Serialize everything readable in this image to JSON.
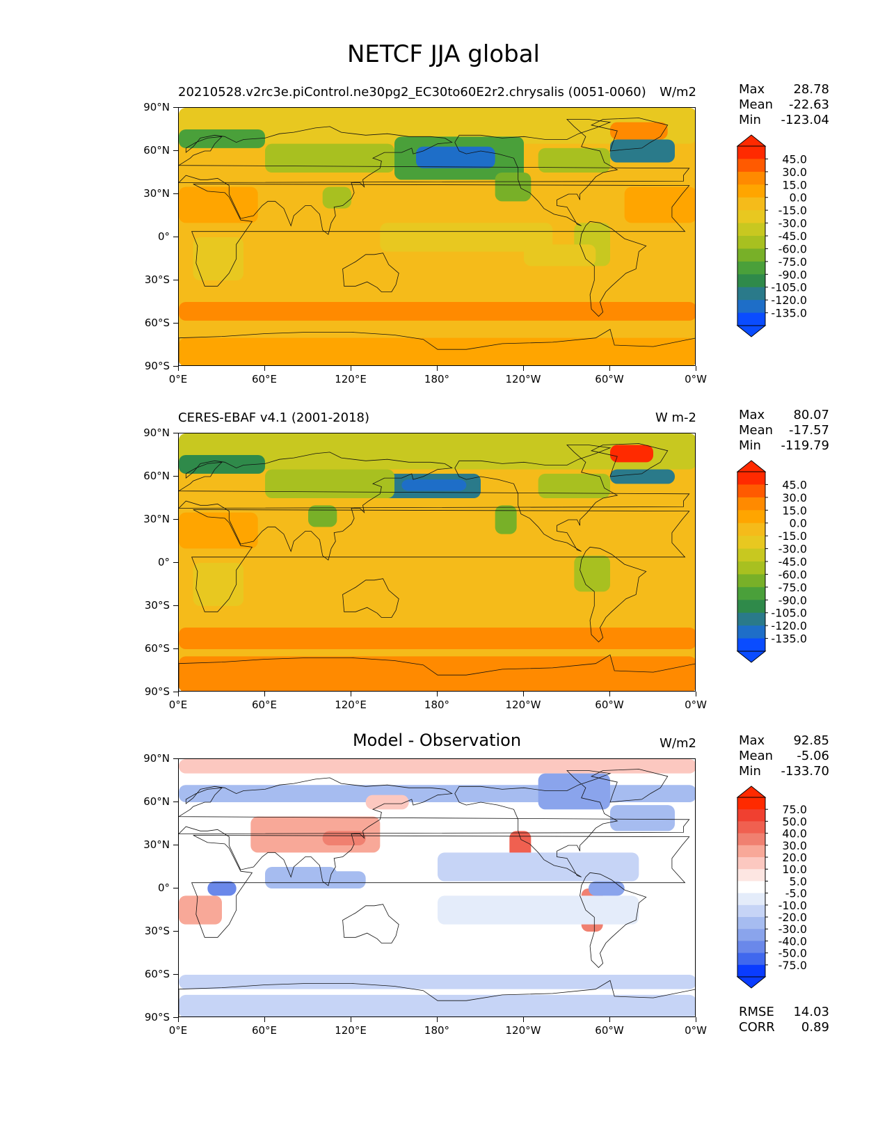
{
  "title": "NETCF JJA global",
  "lat_labels": [
    "90°N",
    "60°N",
    "30°N",
    "0°",
    "30°S",
    "60°S",
    "90°S"
  ],
  "lon_labels": [
    "0°E",
    "60°E",
    "120°E",
    "180°",
    "120°W",
    "60°W",
    "0°W"
  ],
  "panels": [
    {
      "title_left": "20210528.v2rc3e.piControl.ne30pg2_EC30to60E2r2.chrysalis (0051-0060)",
      "title_center": "",
      "units": "W/m2",
      "max_label": "Max",
      "max": "28.78",
      "mean_label": "Mean",
      "mean": "-22.63",
      "min_label": "Min",
      "min": "-123.04",
      "cbar_ticks": [
        "45.0",
        "30.0",
        "15.0",
        "0.0",
        "-15.0",
        "-30.0",
        "-45.0",
        "-60.0",
        "-75.0",
        "-90.0",
        "-105.0",
        "-120.0",
        "-135.0"
      ],
      "cbar_colors": [
        "#ff2a00",
        "#ff5a00",
        "#ff8a00",
        "#ffa500",
        "#f5bb1a",
        "#e8c820",
        "#c8c820",
        "#a8c020",
        "#78b028",
        "#4aa03a",
        "#2f8a4a",
        "#2a7a8a",
        "#1e6ec8",
        "#0a4cff"
      ]
    },
    {
      "title_left": "CERES-EBAF v4.1 (2001-2018)",
      "title_center": "",
      "units": "W m-2",
      "max_label": "Max",
      "max": "80.07",
      "mean_label": "Mean",
      "mean": "-17.57",
      "min_label": "Min",
      "min": "-119.79",
      "cbar_ticks": [
        "45.0",
        "30.0",
        "15.0",
        "0.0",
        "-15.0",
        "-30.0",
        "-45.0",
        "-60.0",
        "-75.0",
        "-90.0",
        "-105.0",
        "-120.0",
        "-135.0"
      ],
      "cbar_colors": [
        "#ff2a00",
        "#ff5a00",
        "#ff8a00",
        "#ffa500",
        "#f5bb1a",
        "#e8c820",
        "#c8c820",
        "#a8c020",
        "#78b028",
        "#4aa03a",
        "#2f8a4a",
        "#2a7a8a",
        "#1e6ec8",
        "#0a4cff"
      ]
    },
    {
      "title_left": "",
      "title_center": "Model - Observation",
      "units": "W/m2",
      "max_label": "Max",
      "max": "92.85",
      "mean_label": "Mean",
      "mean": "-5.06",
      "min_label": "Min",
      "min": "-133.70",
      "cbar_ticks": [
        "75.0",
        "50.0",
        "40.0",
        "30.0",
        "20.0",
        "10.0",
        "5.0",
        "-5.0",
        "-10.0",
        "-20.0",
        "-30.0",
        "-40.0",
        "-50.0",
        "-75.0"
      ],
      "cbar_colors": [
        "#ff2a00",
        "#f04030",
        "#f06050",
        "#f08070",
        "#f8a898",
        "#fcc8c0",
        "#fde6e2",
        "#ffffff",
        "#e4ecfa",
        "#c6d4f6",
        "#a6bcf0",
        "#8aa4ec",
        "#6a88ea",
        "#4068ee",
        "#0a3cff"
      ],
      "rmse_label": "RMSE",
      "rmse": "14.03",
      "corr_label": "CORR",
      "corr": "0.89"
    }
  ]
}
